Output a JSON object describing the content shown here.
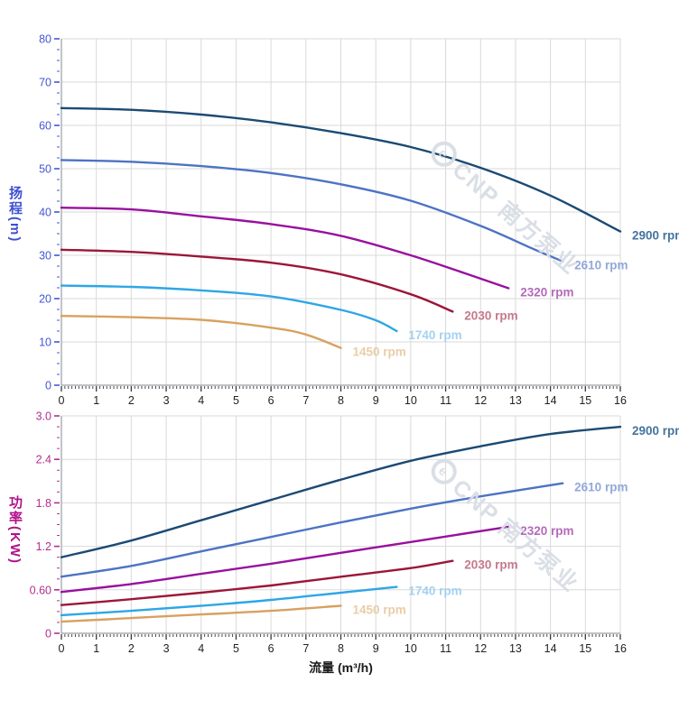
{
  "page": {
    "background": "#ffffff"
  },
  "watermark": {
    "logo_label": "e",
    "text": "CNP 南方泵业"
  },
  "axis_style": {
    "grid_color": "#d9d9d9",
    "x_tick_color": "#3a3a3a",
    "x_label_color": "#222222",
    "axis_line_color": "#999da3"
  },
  "chart_data": [
    {
      "id": "head",
      "type": "line",
      "title": "",
      "xlabel": "流量 (m³/h)",
      "ylabel": "扬程(m)",
      "xlim": [
        0,
        16
      ],
      "ylim": [
        0,
        80
      ],
      "grid": true,
      "legend_position": "end-of-curve",
      "axis_color": "#4456d4",
      "x_ticks": [
        "0",
        "1",
        "2",
        "3",
        "4",
        "5",
        "6",
        "7",
        "8",
        "9",
        "10",
        "11",
        "12",
        "13",
        "14",
        "15",
        "16"
      ],
      "y_ticks": [
        {
          "v": 0,
          "label": "0"
        },
        {
          "v": 10,
          "label": "10"
        },
        {
          "v": 20,
          "label": "20"
        },
        {
          "v": 30,
          "label": "30"
        },
        {
          "v": 40,
          "label": "40"
        },
        {
          "v": 50,
          "label": "50"
        },
        {
          "v": 60,
          "label": "60"
        },
        {
          "v": 70,
          "label": "70"
        },
        {
          "v": 80,
          "label": "80"
        }
      ],
      "series": [
        {
          "name": "2900 rpm",
          "color": "#1b4a74",
          "label_color": "#44749e",
          "points": [
            [
              0,
              64
            ],
            [
              2,
              63.6
            ],
            [
              4,
              62.5
            ],
            [
              6,
              60.7
            ],
            [
              8,
              58.2
            ],
            [
              10,
              55
            ],
            [
              12,
              50.2
            ],
            [
              14,
              43.8
            ],
            [
              16,
              35.5
            ]
          ]
        },
        {
          "name": "2610 rpm",
          "color": "#4d73c4",
          "label_color": "#92a8da",
          "points": [
            [
              0,
              52
            ],
            [
              2,
              51.6
            ],
            [
              4,
              50.6
            ],
            [
              6,
              49
            ],
            [
              8,
              46.4
            ],
            [
              10,
              42.6
            ],
            [
              12,
              36.8
            ],
            [
              13.5,
              31.5
            ],
            [
              14.35,
              28.6
            ]
          ]
        },
        {
          "name": "2320 rpm",
          "color": "#98119d",
          "label_color": "#b46abc",
          "points": [
            [
              0,
              41
            ],
            [
              2,
              40.6
            ],
            [
              4,
              39
            ],
            [
              6,
              37.2
            ],
            [
              8,
              34.5
            ],
            [
              10,
              30
            ],
            [
              12,
              24.6
            ],
            [
              12.8,
              22.4
            ]
          ]
        },
        {
          "name": "2030 rpm",
          "color": "#9b1737",
          "label_color": "#c4798c",
          "points": [
            [
              0,
              31.3
            ],
            [
              2,
              30.8
            ],
            [
              4,
              29.7
            ],
            [
              6,
              28.3
            ],
            [
              8,
              25.6
            ],
            [
              10,
              21
            ],
            [
              11.2,
              17
            ]
          ]
        },
        {
          "name": "1740 rpm",
          "color": "#2ea6e6",
          "label_color": "#a3d2f0",
          "points": [
            [
              0,
              23
            ],
            [
              2,
              22.7
            ],
            [
              4,
              21.9
            ],
            [
              6,
              20.5
            ],
            [
              8,
              17.4
            ],
            [
              9,
              15
            ],
            [
              9.6,
              12.5
            ]
          ]
        },
        {
          "name": "1450 rpm",
          "color": "#d8a160",
          "label_color": "#e8cda7",
          "points": [
            [
              0,
              16
            ],
            [
              2,
              15.7
            ],
            [
              4,
              15.1
            ],
            [
              6,
              13.3
            ],
            [
              7,
              11.7
            ],
            [
              8,
              8.6
            ]
          ]
        }
      ]
    },
    {
      "id": "power",
      "type": "line",
      "title": "",
      "xlabel": "流量 (m³/h)",
      "ylabel": "功率(KW)",
      "xlim": [
        0,
        16
      ],
      "ylim": [
        0,
        3.0
      ],
      "grid": true,
      "legend_position": "end-of-curve",
      "axis_color": "#b42e90",
      "x_ticks": [
        "0",
        "1",
        "2",
        "3",
        "4",
        "5",
        "6",
        "7",
        "8",
        "9",
        "10",
        "11",
        "12",
        "13",
        "14",
        "15",
        "16"
      ],
      "y_ticks": [
        {
          "v": 0,
          "label": "0"
        },
        {
          "v": 0.6,
          "label": "0.60"
        },
        {
          "v": 1.2,
          "label": "1.2"
        },
        {
          "v": 1.8,
          "label": "1.8"
        },
        {
          "v": 2.4,
          "label": "2.4"
        },
        {
          "v": 3.0,
          "label": "3.0"
        }
      ],
      "series": [
        {
          "name": "2900 rpm",
          "color": "#1b4a74",
          "label_color": "#44749e",
          "points": [
            [
              0,
              1.05
            ],
            [
              2,
              1.28
            ],
            [
              4,
              1.56
            ],
            [
              6,
              1.84
            ],
            [
              8,
              2.12
            ],
            [
              10,
              2.38
            ],
            [
              12,
              2.58
            ],
            [
              14,
              2.75
            ],
            [
              16,
              2.85
            ]
          ]
        },
        {
          "name": "2610 rpm",
          "color": "#4d73c4",
          "label_color": "#92a8da",
          "points": [
            [
              0,
              0.78
            ],
            [
              2,
              0.93
            ],
            [
              4,
              1.13
            ],
            [
              6,
              1.33
            ],
            [
              8,
              1.53
            ],
            [
              10,
              1.72
            ],
            [
              12,
              1.89
            ],
            [
              14.35,
              2.07
            ]
          ]
        },
        {
          "name": "2320 rpm",
          "color": "#98119d",
          "label_color": "#b46abc",
          "points": [
            [
              0,
              0.57
            ],
            [
              2,
              0.68
            ],
            [
              4,
              0.82
            ],
            [
              6,
              0.96
            ],
            [
              8,
              1.11
            ],
            [
              10,
              1.26
            ],
            [
              12.8,
              1.47
            ]
          ]
        },
        {
          "name": "2030 rpm",
          "color": "#9b1737",
          "label_color": "#c4798c",
          "points": [
            [
              0,
              0.39
            ],
            [
              2,
              0.47
            ],
            [
              4,
              0.56
            ],
            [
              6,
              0.66
            ],
            [
              8,
              0.78
            ],
            [
              10,
              0.9
            ],
            [
              11.2,
              1.0
            ]
          ]
        },
        {
          "name": "1740 rpm",
          "color": "#2ea6e6",
          "label_color": "#a3d2f0",
          "points": [
            [
              0,
              0.25
            ],
            [
              2,
              0.31
            ],
            [
              4,
              0.38
            ],
            [
              6,
              0.46
            ],
            [
              8,
              0.56
            ],
            [
              9.6,
              0.64
            ]
          ]
        },
        {
          "name": "1450 rpm",
          "color": "#d8a160",
          "label_color": "#e8cda7",
          "points": [
            [
              0,
              0.16
            ],
            [
              2,
              0.21
            ],
            [
              4,
              0.26
            ],
            [
              6,
              0.31
            ],
            [
              8,
              0.38
            ]
          ]
        }
      ]
    }
  ]
}
